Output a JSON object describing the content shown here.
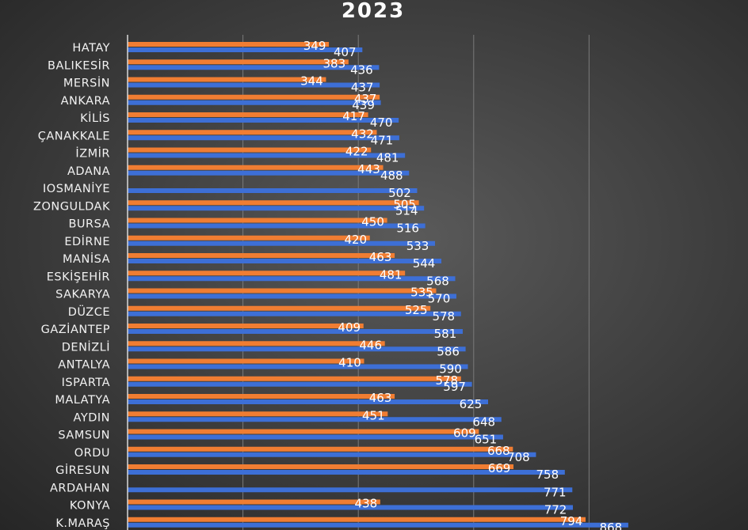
{
  "chart_data": {
    "type": "bar",
    "orientation": "horizontal",
    "title": "2023",
    "categories": [
      "HATAY",
      "BALIKESİR",
      "MERSİN",
      "ANKARA",
      "KİLİS",
      "ÇANAKKALE",
      "İZMİR",
      "ADANA",
      "IOSMANİYE",
      "ZONGULDAK",
      "BURSA",
      "EDİRNE",
      "MANİSA",
      "ESKİŞEHİR",
      "SAKARYA",
      "DÜZCE",
      "GAZİANTEP",
      "DENİZLİ",
      "ANTALYA",
      "ISPARTA",
      "MALATYA",
      "AYDIN",
      "SAMSUN",
      "ORDU",
      "GİRESUN",
      "ARDAHAN",
      "KONYA",
      "K.MARAŞ"
    ],
    "series": [
      {
        "name": "orange",
        "color": "#f07d32",
        "values": [
          349,
          383,
          344,
          437,
          417,
          432,
          422,
          443,
          null,
          505,
          450,
          420,
          463,
          481,
          535,
          525,
          409,
          446,
          410,
          578,
          463,
          451,
          609,
          668,
          669,
          null,
          438,
          794
        ]
      },
      {
        "name": "blue",
        "color": "#3d6fd6",
        "values": [
          407,
          436,
          437,
          439,
          470,
          471,
          481,
          488,
          502,
          514,
          516,
          533,
          544,
          568,
          570,
          578,
          581,
          586,
          590,
          597,
          625,
          648,
          651,
          708,
          758,
          771,
          772,
          868
        ]
      }
    ],
    "xlim": [
      0,
      1000
    ],
    "grid": true,
    "legend": "none"
  }
}
